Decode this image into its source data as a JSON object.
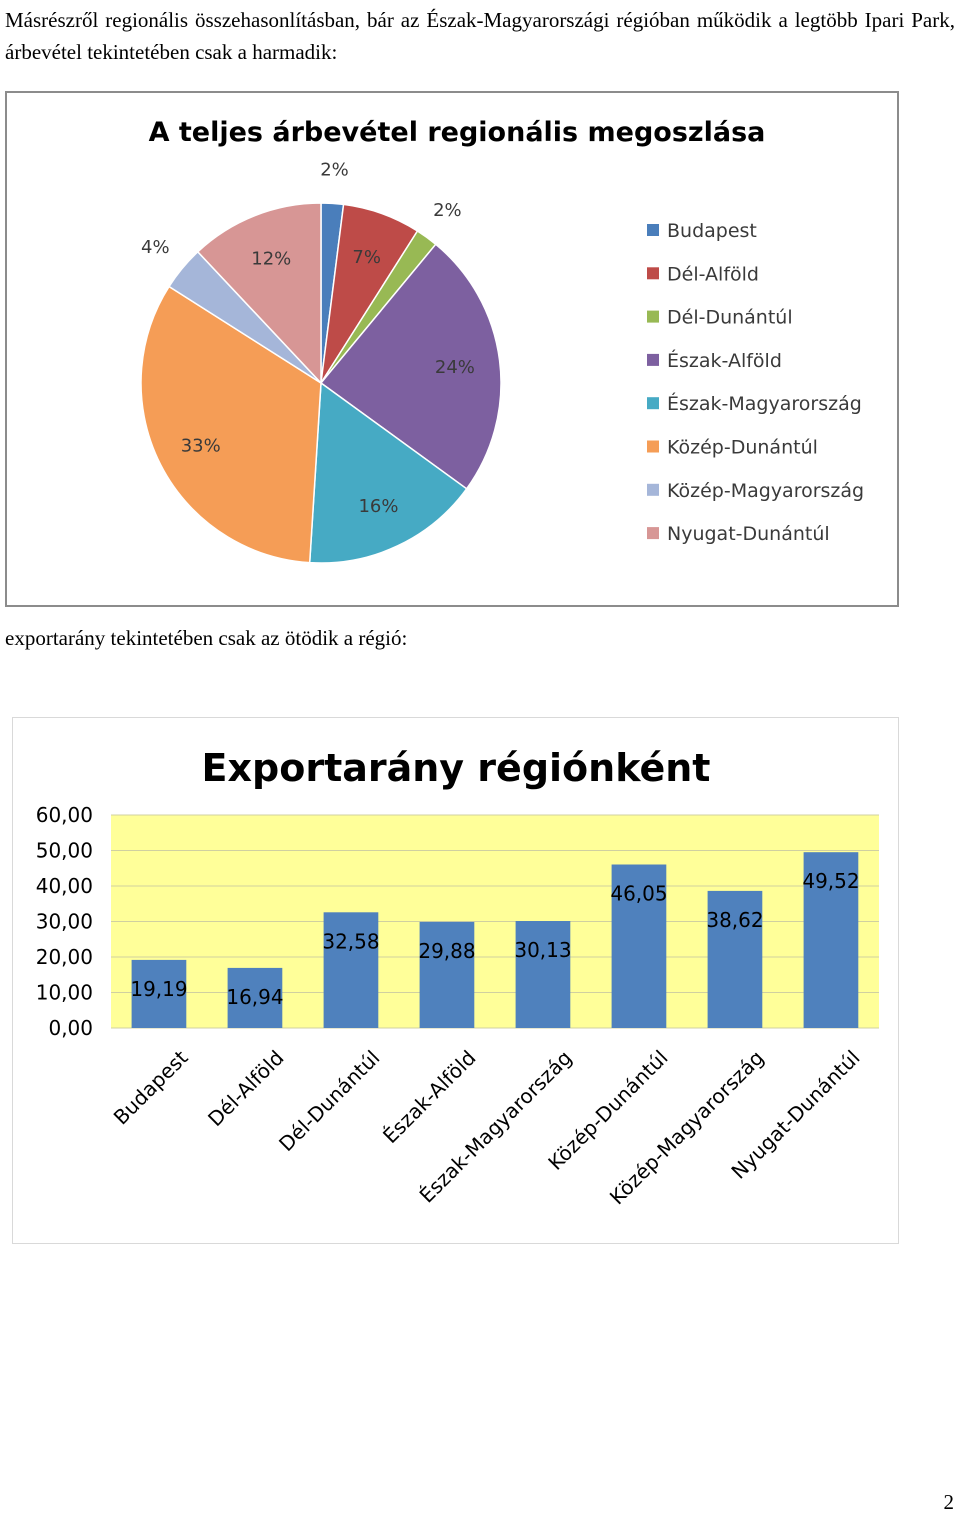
{
  "text": {
    "paragraph_1": "Másrészről regionális összehasonlításban, bár az Észak-Magyarországi régióban működik a legtöbb Ipari Park, árbevétel tekintetében csak a harmadik:",
    "paragraph_2": "exportarány tekintetében csak az ötödik  a régió:",
    "page_number": "2"
  },
  "chart_data": [
    {
      "type": "pie",
      "title": "A teljes árbevétel regionális megoszlása",
      "legend_position": "right",
      "slices": [
        {
          "label": "Budapest",
          "value": 2,
          "display": "2%",
          "color": "#4a7ebb"
        },
        {
          "label": "Dél-Alföld",
          "value": 7,
          "display": "7%",
          "color": "#be4b48"
        },
        {
          "label": "Dél-Dunántúl",
          "value": 2,
          "display": "2%",
          "color": "#98b954"
        },
        {
          "label": "Észak-Alföld",
          "value": 24,
          "display": "24%",
          "color": "#7d60a0"
        },
        {
          "label": "Észak-Magyarország",
          "value": 16,
          "display": "16%",
          "color": "#46aac4"
        },
        {
          "label": "Közép-Dunántúl",
          "value": 33,
          "display": "33%",
          "color": "#f59d56"
        },
        {
          "label": "Közép-Magyarország",
          "value": 4,
          "display": "4%",
          "color": "#a5b6d9"
        },
        {
          "label": "Nyugat-Dunántúl",
          "value": 12,
          "display": "12%",
          "color": "#d79695"
        }
      ]
    },
    {
      "type": "bar",
      "title": "Exportarány régiónként",
      "categories": [
        "Budapest",
        "Dél-Alföld",
        "Dél-Dunántúl",
        "Észak-Alföld",
        "Észak-Magyarország",
        "Közép-Dunántúl",
        "Közép-Magyarország",
        "Nyugat-Dunántúl"
      ],
      "values": [
        19.19,
        16.94,
        32.58,
        29.88,
        30.13,
        46.05,
        38.62,
        49.52
      ],
      "value_labels": [
        "19,19",
        "16,94",
        "32,58",
        "29,88",
        "30,13",
        "46,05",
        "38,62",
        "49,52"
      ],
      "y_ticks": [
        "0,00",
        "10,00",
        "20,00",
        "30,00",
        "40,00",
        "50,00",
        "60,00"
      ],
      "ylim": [
        0,
        60
      ],
      "bar_color": "#4f81bd",
      "plot_background": "#ffff99",
      "grid": true
    }
  ]
}
